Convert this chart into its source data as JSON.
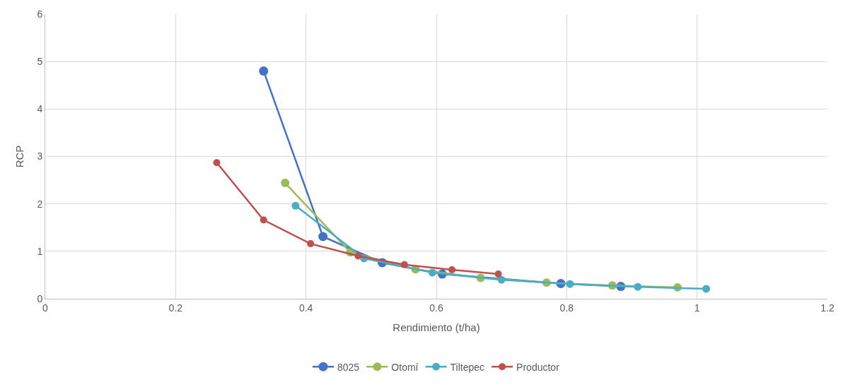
{
  "chart_data": {
    "type": "line",
    "xlabel": "Rendimiento (t/ha)",
    "ylabel": "RCP",
    "xlim": [
      0,
      1.2
    ],
    "xticks": [
      0,
      0.2,
      0.4,
      0.6,
      0.8,
      1,
      1.2
    ],
    "ylim": [
      0,
      6
    ],
    "yticks": [
      0,
      1,
      2,
      3,
      4,
      5,
      6
    ],
    "grid": true,
    "legend": "bottom",
    "marker": "circle",
    "line_style": "solid",
    "series": [
      {
        "name": "8025",
        "color": "#4472c4",
        "x": [
          0.335,
          0.426,
          0.517,
          0.609,
          0.791,
          0.883
        ],
        "values": [
          4.8,
          1.31,
          0.76,
          0.52,
          0.32,
          0.26
        ]
      },
      {
        "name": "Otomí",
        "color": "#9bbb59",
        "x": [
          0.368,
          0.468,
          0.568,
          0.668,
          0.769,
          0.87,
          0.97
        ],
        "values": [
          2.44,
          0.98,
          0.62,
          0.44,
          0.34,
          0.28,
          0.24
        ]
      },
      {
        "name": "Tiltepec",
        "color": "#4bacc6",
        "x": [
          0.384,
          0.489,
          0.594,
          0.7,
          0.805,
          0.909,
          1.014
        ],
        "values": [
          1.96,
          0.85,
          0.55,
          0.4,
          0.31,
          0.25,
          0.21
        ]
      },
      {
        "name": "Productor",
        "color": "#c0504d",
        "x": [
          0.263,
          0.335,
          0.407,
          0.48,
          0.551,
          0.624,
          0.695
        ],
        "values": [
          2.87,
          1.66,
          1.16,
          0.9,
          0.72,
          0.61,
          0.52
        ]
      }
    ]
  }
}
